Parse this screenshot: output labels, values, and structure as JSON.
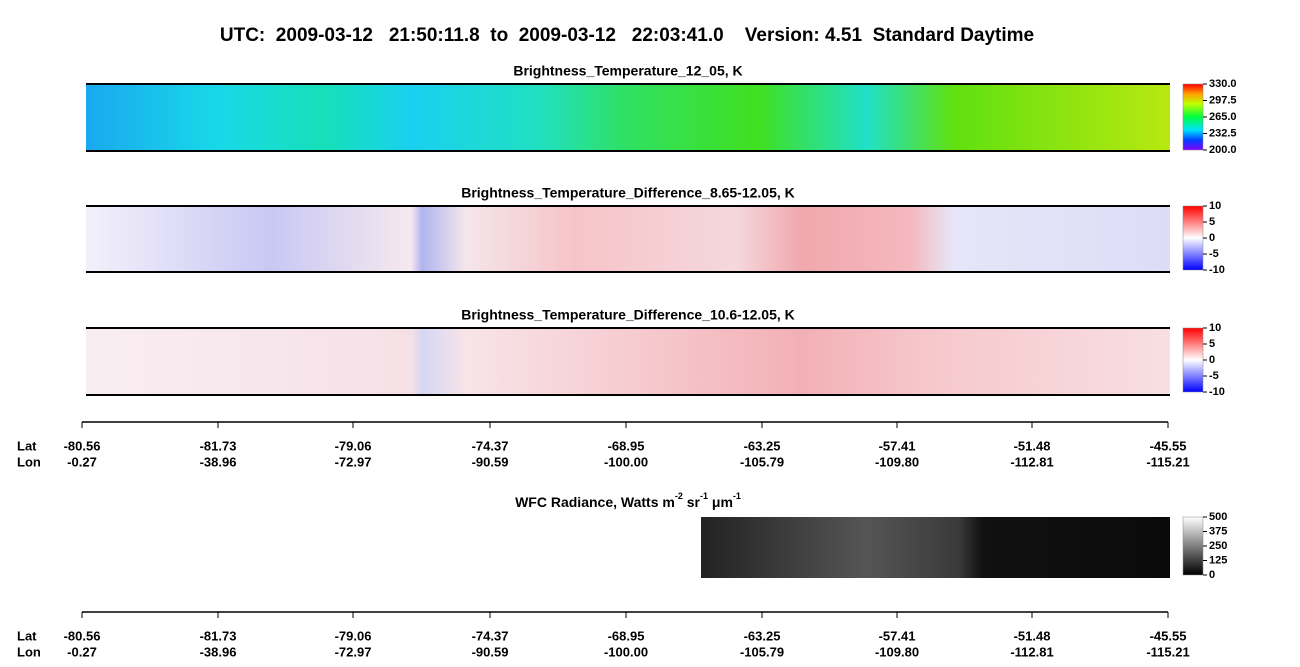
{
  "title": "UTC:  2009-03-12   21:50:11.8  to  2009-03-12   22:03:41.0    Version: 4.51  Standard Daytime",
  "panels": [
    {
      "title": "Brightness_Temperature_12_05, K",
      "colorbar": {
        "lim": [
          200,
          330
        ],
        "ticks": [
          {
            "value": 330,
            "label": "330.0"
          },
          {
            "value": 297.5,
            "label": "297.5"
          },
          {
            "value": 265,
            "label": "265.0"
          },
          {
            "value": 232.5,
            "label": "232.5"
          },
          {
            "value": 200,
            "label": "200.0"
          }
        ]
      }
    },
    {
      "title": "Brightness_Temperature_Difference_8.65-12.05, K",
      "colorbar": {
        "lim": [
          -10,
          10
        ],
        "ticks": [
          10,
          5,
          0,
          -5,
          -10
        ]
      }
    },
    {
      "title": "Brightness_Temperature_Difference_10.6-12.05, K",
      "colorbar": {
        "lim": [
          -10,
          10
        ],
        "ticks": [
          10,
          5,
          0,
          -5,
          -10
        ]
      }
    },
    {
      "title_parts": [
        "WFC Radiance, Watts m",
        "-2",
        " sr",
        "-1",
        " μm",
        "-1"
      ],
      "colorbar": {
        "lim": [
          0,
          500
        ],
        "ticks": [
          500,
          375,
          250,
          125,
          0
        ]
      }
    }
  ],
  "axes": [
    {
      "lat_label": "Lat",
      "lon_label": "Lon",
      "lat": [
        "-80.56",
        "-81.73",
        "-79.06",
        "-74.37",
        "-68.95",
        "-63.25",
        "-57.41",
        "-51.48",
        "-45.55"
      ],
      "lon": [
        "-0.27",
        "-38.96",
        "-72.97",
        "-90.59",
        "-100.00",
        "-105.79",
        "-109.80",
        "-112.81",
        "-115.21"
      ]
    },
    {
      "lat_label": "Lat",
      "lon_label": "Lon",
      "lat": [
        "-80.56",
        "-81.73",
        "-79.06",
        "-74.37",
        "-68.95",
        "-63.25",
        "-57.41",
        "-51.48",
        "-45.55"
      ],
      "lon": [
        "-0.27",
        "-38.96",
        "-72.97",
        "-90.59",
        "-100.00",
        "-105.79",
        "-109.80",
        "-112.81",
        "-115.21"
      ]
    }
  ]
}
